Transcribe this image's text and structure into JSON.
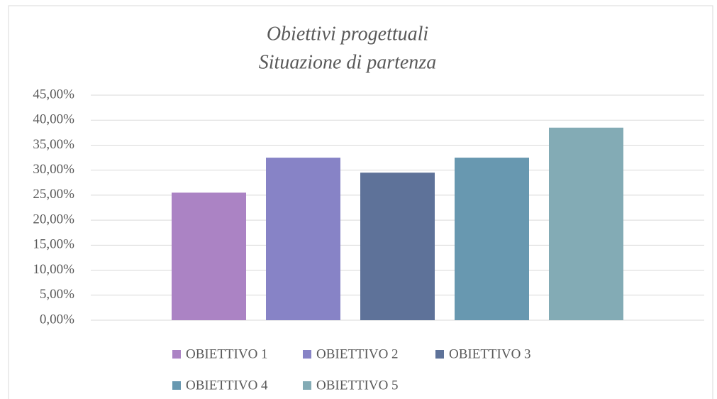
{
  "chart_data": {
    "type": "bar",
    "title": "Obiettivi progettuali",
    "subtitle": "Situazione di partenza",
    "series": [
      {
        "name": "OBIETTIVO 1",
        "color": "#ab83c4",
        "values": [
          25.5
        ]
      },
      {
        "name": "OBIETTIVO 2",
        "color": "#8783c6",
        "values": [
          32.5
        ]
      },
      {
        "name": "OBIETTIVO 3",
        "color": "#5e7299",
        "values": [
          29.5
        ]
      },
      {
        "name": "OBIETTIVO 4",
        "color": "#6898b0",
        "values": [
          32.5
        ]
      },
      {
        "name": "OBIETTIVO 5",
        "color": "#83abb5",
        "values": [
          38.5
        ]
      }
    ],
    "ylim": [
      0,
      45
    ],
    "yticks": [
      {
        "value": 0,
        "label": "0,00%"
      },
      {
        "value": 5,
        "label": "5,00%"
      },
      {
        "value": 10,
        "label": "10,00%"
      },
      {
        "value": 15,
        "label": "15,00%"
      },
      {
        "value": 20,
        "label": "20,00%"
      },
      {
        "value": 25,
        "label": "25,00%"
      },
      {
        "value": 30,
        "label": "30,00%"
      },
      {
        "value": 35,
        "label": "35,00%"
      },
      {
        "value": 40,
        "label": "40,00%"
      },
      {
        "value": 45,
        "label": "45,00%"
      }
    ],
    "grid": true,
    "legend": "bottom"
  }
}
